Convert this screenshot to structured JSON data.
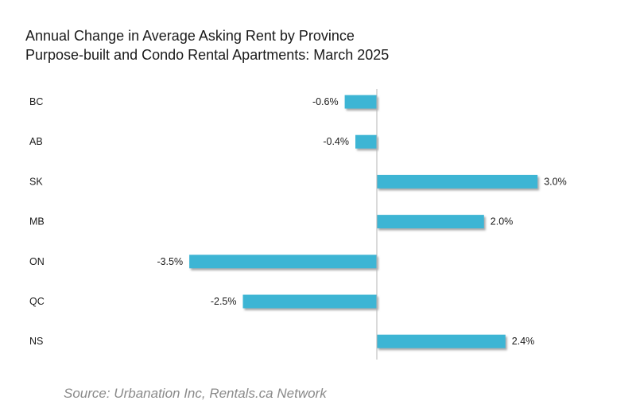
{
  "chart_data": {
    "type": "bar",
    "orientation": "horizontal",
    "title": "Annual Change in Average Asking Rent by Province",
    "subtitle": "Purpose-built and Condo Rental Apartments: March 2025",
    "categories": [
      "BC",
      "AB",
      "SK",
      "MB",
      "ON",
      "QC",
      "NS"
    ],
    "values": [
      -0.6,
      -0.4,
      3.0,
      2.0,
      -3.5,
      -2.5,
      2.4
    ],
    "value_labels": [
      "-0.6%",
      "-0.4%",
      "3.0%",
      "2.0%",
      "-3.5%",
      "-2.5%",
      "2.4%"
    ],
    "unit": "%",
    "xlim": [
      -3.5,
      3.0
    ],
    "grid": false,
    "legend": "none",
    "bar_color": "#3db5d4",
    "axis_color": "#b5b5b5",
    "shadow_color": "#9a9a9a",
    "source": "Source: Urbanation Inc, Rentals.ca Network"
  }
}
